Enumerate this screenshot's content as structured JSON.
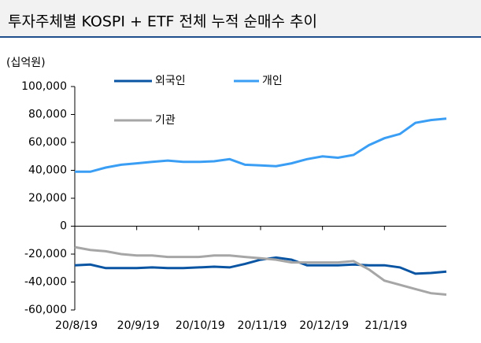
{
  "chart_data": {
    "type": "line",
    "title": "투자주체별 KOSPI + ETF 전체 누적 순매수 추이",
    "y_unit": "(십억원)",
    "categories": [
      "20/8/19",
      null,
      null,
      null,
      "20/9/19",
      null,
      null,
      null,
      "20/10/19",
      null,
      null,
      null,
      "20/11/19",
      null,
      null,
      null,
      "20/12/19",
      null,
      null,
      null,
      "21/1/19",
      null,
      null,
      null,
      null
    ],
    "series": [
      {
        "name": "외국인",
        "color": "#0a55a3",
        "values": [
          -28000,
          -27500,
          -30000,
          -30000,
          -30000,
          -29500,
          -30000,
          -30000,
          -29500,
          -29000,
          -29500,
          -27000,
          -24000,
          -22500,
          -24000,
          -28000,
          -28000,
          -28000,
          -27500,
          -28000,
          -28000,
          -29500,
          -34000,
          -33500,
          -32500
        ]
      },
      {
        "name": "개인",
        "color": "#3a9ef5",
        "values": [
          39000,
          39000,
          42000,
          44000,
          45000,
          46000,
          47000,
          46000,
          46000,
          46500,
          48000,
          44000,
          43500,
          43000,
          45000,
          48000,
          50000,
          49000,
          51000,
          58000,
          63000,
          66000,
          74000,
          76000,
          77000
        ]
      },
      {
        "name": "기관",
        "color": "#a6a6a6",
        "values": [
          -15000,
          -17000,
          -18000,
          -20000,
          -21000,
          -21000,
          -22000,
          -22000,
          -22000,
          -21000,
          -21000,
          -22000,
          -23000,
          -24000,
          -26000,
          -26000,
          -26000,
          -26000,
          -25000,
          -31000,
          -39000,
          -42000,
          -45000,
          -48000,
          -49000
        ]
      }
    ],
    "ylim": [
      -60000,
      100000
    ],
    "yticks": [
      {
        "value": 100000,
        "label": "100,000"
      },
      {
        "value": 80000,
        "label": "80,000"
      },
      {
        "value": 60000,
        "label": "60,000"
      },
      {
        "value": 40000,
        "label": "40,000"
      },
      {
        "value": 20000,
        "label": "20,000"
      },
      0,
      {
        "value": -20000,
        "label": "-20,000"
      },
      {
        "value": -40000,
        "label": "-40,000"
      },
      {
        "value": -60000,
        "label": "-60,000"
      }
    ],
    "grid": false
  }
}
